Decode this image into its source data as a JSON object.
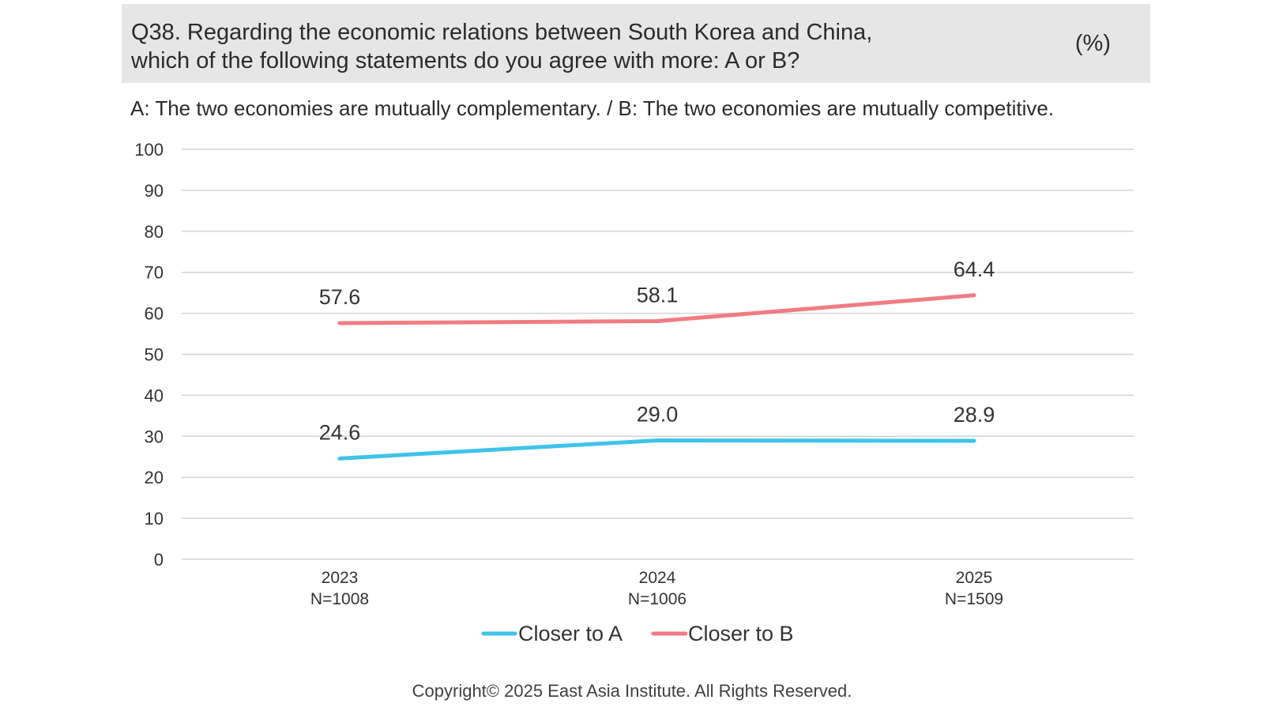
{
  "header": {
    "question_line1": "Q38. Regarding the economic relations between South Korea and China,",
    "question_line2": "which of the following statements do you agree with more: A or B?",
    "unit": "(%)"
  },
  "subtitle": "A: The two economies are mutually complementary. / B: The two economies are mutually competitive.",
  "footer": {
    "copyright": "Copyright© 2025 East Asia Institute. All Rights Reserved."
  },
  "chart_data": {
    "type": "line",
    "categories": [
      "2023",
      "2024",
      "2025"
    ],
    "category_sublabels": [
      "N=1008",
      "N=1006",
      "N=1509"
    ],
    "series": [
      {
        "name": "Closer to A",
        "values": [
          24.6,
          29.0,
          28.9
        ],
        "labels": [
          "24.6",
          "29.0",
          "28.9"
        ],
        "color": "#3fc3ea"
      },
      {
        "name": "Closer to B",
        "values": [
          57.6,
          58.1,
          64.4
        ],
        "labels": [
          "57.6",
          "58.1",
          "64.4"
        ],
        "color": "#f07c82"
      }
    ],
    "ylim": [
      0,
      100
    ],
    "yticks": [
      0,
      10,
      20,
      30,
      40,
      50,
      60,
      70,
      80,
      90,
      100
    ],
    "grid": true,
    "legend_position": "bottom-center",
    "title": "",
    "xlabel": "",
    "ylabel": ""
  }
}
